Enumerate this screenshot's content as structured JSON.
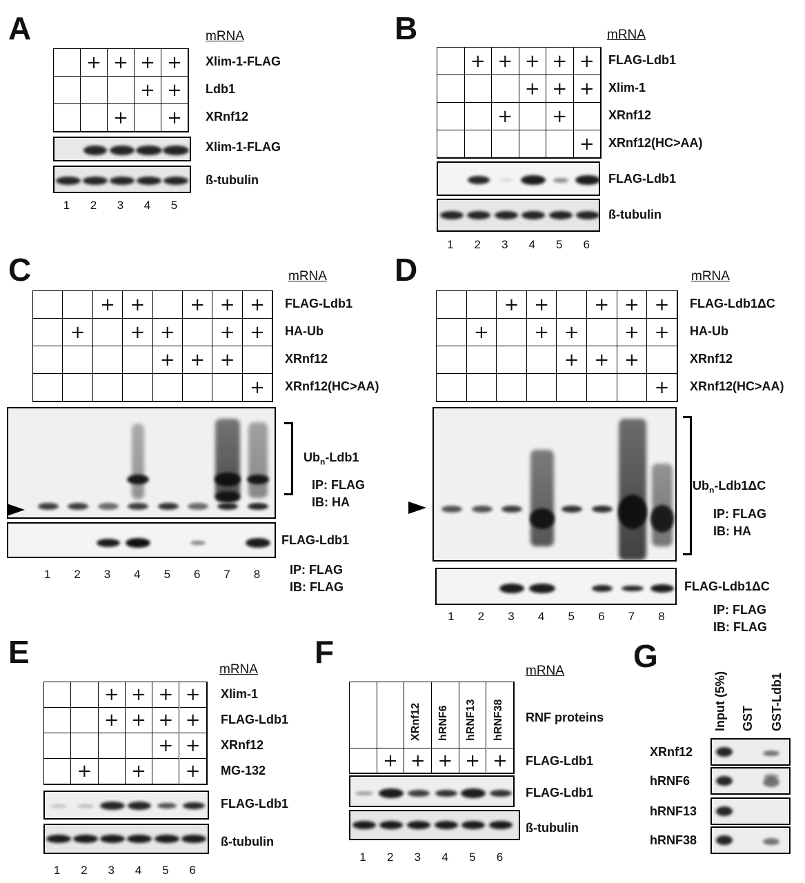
{
  "panels": {
    "A": {
      "letter": "A",
      "mrna": "mRNA",
      "rows": [
        {
          "label": "Xlim-1-FLAG",
          "plus": [
            0,
            1,
            1,
            1,
            1
          ]
        },
        {
          "label": "Ldb1",
          "plus": [
            0,
            0,
            0,
            1,
            1
          ]
        },
        {
          "label": "XRnf12",
          "plus": [
            0,
            0,
            1,
            0,
            1
          ]
        }
      ],
      "blots": [
        "Xlim-1-FLAG",
        "ß-tubulin"
      ],
      "lanes": [
        "1",
        "2",
        "3",
        "4",
        "5"
      ]
    },
    "B": {
      "letter": "B",
      "mrna": "mRNA",
      "rows": [
        {
          "label": "FLAG-Ldb1",
          "plus": [
            0,
            1,
            1,
            1,
            1,
            1
          ]
        },
        {
          "label": "Xlim-1",
          "plus": [
            0,
            0,
            0,
            1,
            1,
            1
          ]
        },
        {
          "label": "XRnf12",
          "plus": [
            0,
            0,
            1,
            0,
            1,
            0
          ]
        },
        {
          "label": "XRnf12(HC>AA)",
          "plus": [
            0,
            0,
            0,
            0,
            0,
            1
          ]
        }
      ],
      "blots": [
        "FLAG-Ldb1",
        "ß-tubulin"
      ],
      "lanes": [
        "1",
        "2",
        "3",
        "4",
        "5",
        "6"
      ]
    },
    "C": {
      "letter": "C",
      "mrna": "mRNA",
      "rows": [
        {
          "label": "FLAG-Ldb1",
          "plus": [
            0,
            0,
            1,
            1,
            0,
            1,
            1,
            1
          ]
        },
        {
          "label": "HA-Ub",
          "plus": [
            0,
            1,
            0,
            1,
            1,
            0,
            1,
            1
          ]
        },
        {
          "label": "XRnf12",
          "plus": [
            0,
            0,
            0,
            0,
            1,
            1,
            1,
            0
          ]
        },
        {
          "label": "XRnf12(HC>AA)",
          "plus": [
            0,
            0,
            0,
            0,
            0,
            0,
            0,
            1
          ]
        }
      ],
      "ub_label": "Ubn-Ldb1",
      "ub_main": "Ub",
      "ub_sub": "n",
      "ub_rest": "-Ldb1",
      "ip1": "IP: FLAG",
      "ib1": "IB: HA",
      "blot2": "FLAG-Ldb1",
      "ip2": "IP: FLAG",
      "ib2": "IB: FLAG",
      "lanes": [
        "1",
        "2",
        "3",
        "4",
        "5",
        "6",
        "7",
        "8"
      ]
    },
    "D": {
      "letter": "D",
      "mrna": "mRNA",
      "rows": [
        {
          "label": "FLAG-Ldb1ΔC",
          "plus": [
            0,
            0,
            1,
            1,
            0,
            1,
            1,
            1
          ]
        },
        {
          "label": "HA-Ub",
          "plus": [
            0,
            1,
            0,
            1,
            1,
            0,
            1,
            1
          ]
        },
        {
          "label": "XRnf12",
          "plus": [
            0,
            0,
            0,
            0,
            1,
            1,
            1,
            0
          ]
        },
        {
          "label": "XRnf12(HC>AA)",
          "plus": [
            0,
            0,
            0,
            0,
            0,
            0,
            0,
            1
          ]
        }
      ],
      "ub_main": "Ub",
      "ub_sub": "n",
      "ub_rest": "-Ldb1ΔC",
      "ip1": "IP: FLAG",
      "ib1": "IB: HA",
      "blot2": "FLAG-Ldb1ΔC",
      "ip2": "IP: FLAG",
      "ib2": "IB: FLAG",
      "lanes": [
        "1",
        "2",
        "3",
        "4",
        "5",
        "6",
        "7",
        "8"
      ]
    },
    "E": {
      "letter": "E",
      "mrna": "mRNA",
      "rows": [
        {
          "label": "Xlim-1",
          "plus": [
            0,
            0,
            1,
            1,
            1,
            1
          ]
        },
        {
          "label": "FLAG-Ldb1",
          "plus": [
            0,
            0,
            1,
            1,
            1,
            1
          ]
        },
        {
          "label": "XRnf12",
          "plus": [
            0,
            0,
            0,
            0,
            1,
            1
          ]
        },
        {
          "label": "MG-132",
          "plus": [
            0,
            1,
            0,
            1,
            0,
            1
          ]
        }
      ],
      "blots": [
        "FLAG-Ldb1",
        "ß-tubulin"
      ],
      "lanes": [
        "1",
        "2",
        "3",
        "4",
        "5",
        "6"
      ]
    },
    "F": {
      "letter": "F",
      "mrna": "mRNA",
      "rnf_label": "RNF proteins",
      "rnf": [
        "",
        "",
        "XRnf12",
        "hRNF6",
        "hRNF13",
        "hRNF38"
      ],
      "rows": [
        {
          "label": "FLAG-Ldb1",
          "plus": [
            0,
            1,
            1,
            1,
            1,
            1
          ]
        }
      ],
      "blots": [
        "FLAG-Ldb1",
        "ß-tubulin"
      ],
      "lanes": [
        "1",
        "2",
        "3",
        "4",
        "5",
        "6"
      ]
    },
    "G": {
      "letter": "G",
      "cols": [
        "Input (5%)",
        "GST",
        "GST-Ldb1"
      ],
      "rows": [
        "XRnf12",
        "hRNF6",
        "hRNF13",
        "hRNF38"
      ]
    }
  }
}
